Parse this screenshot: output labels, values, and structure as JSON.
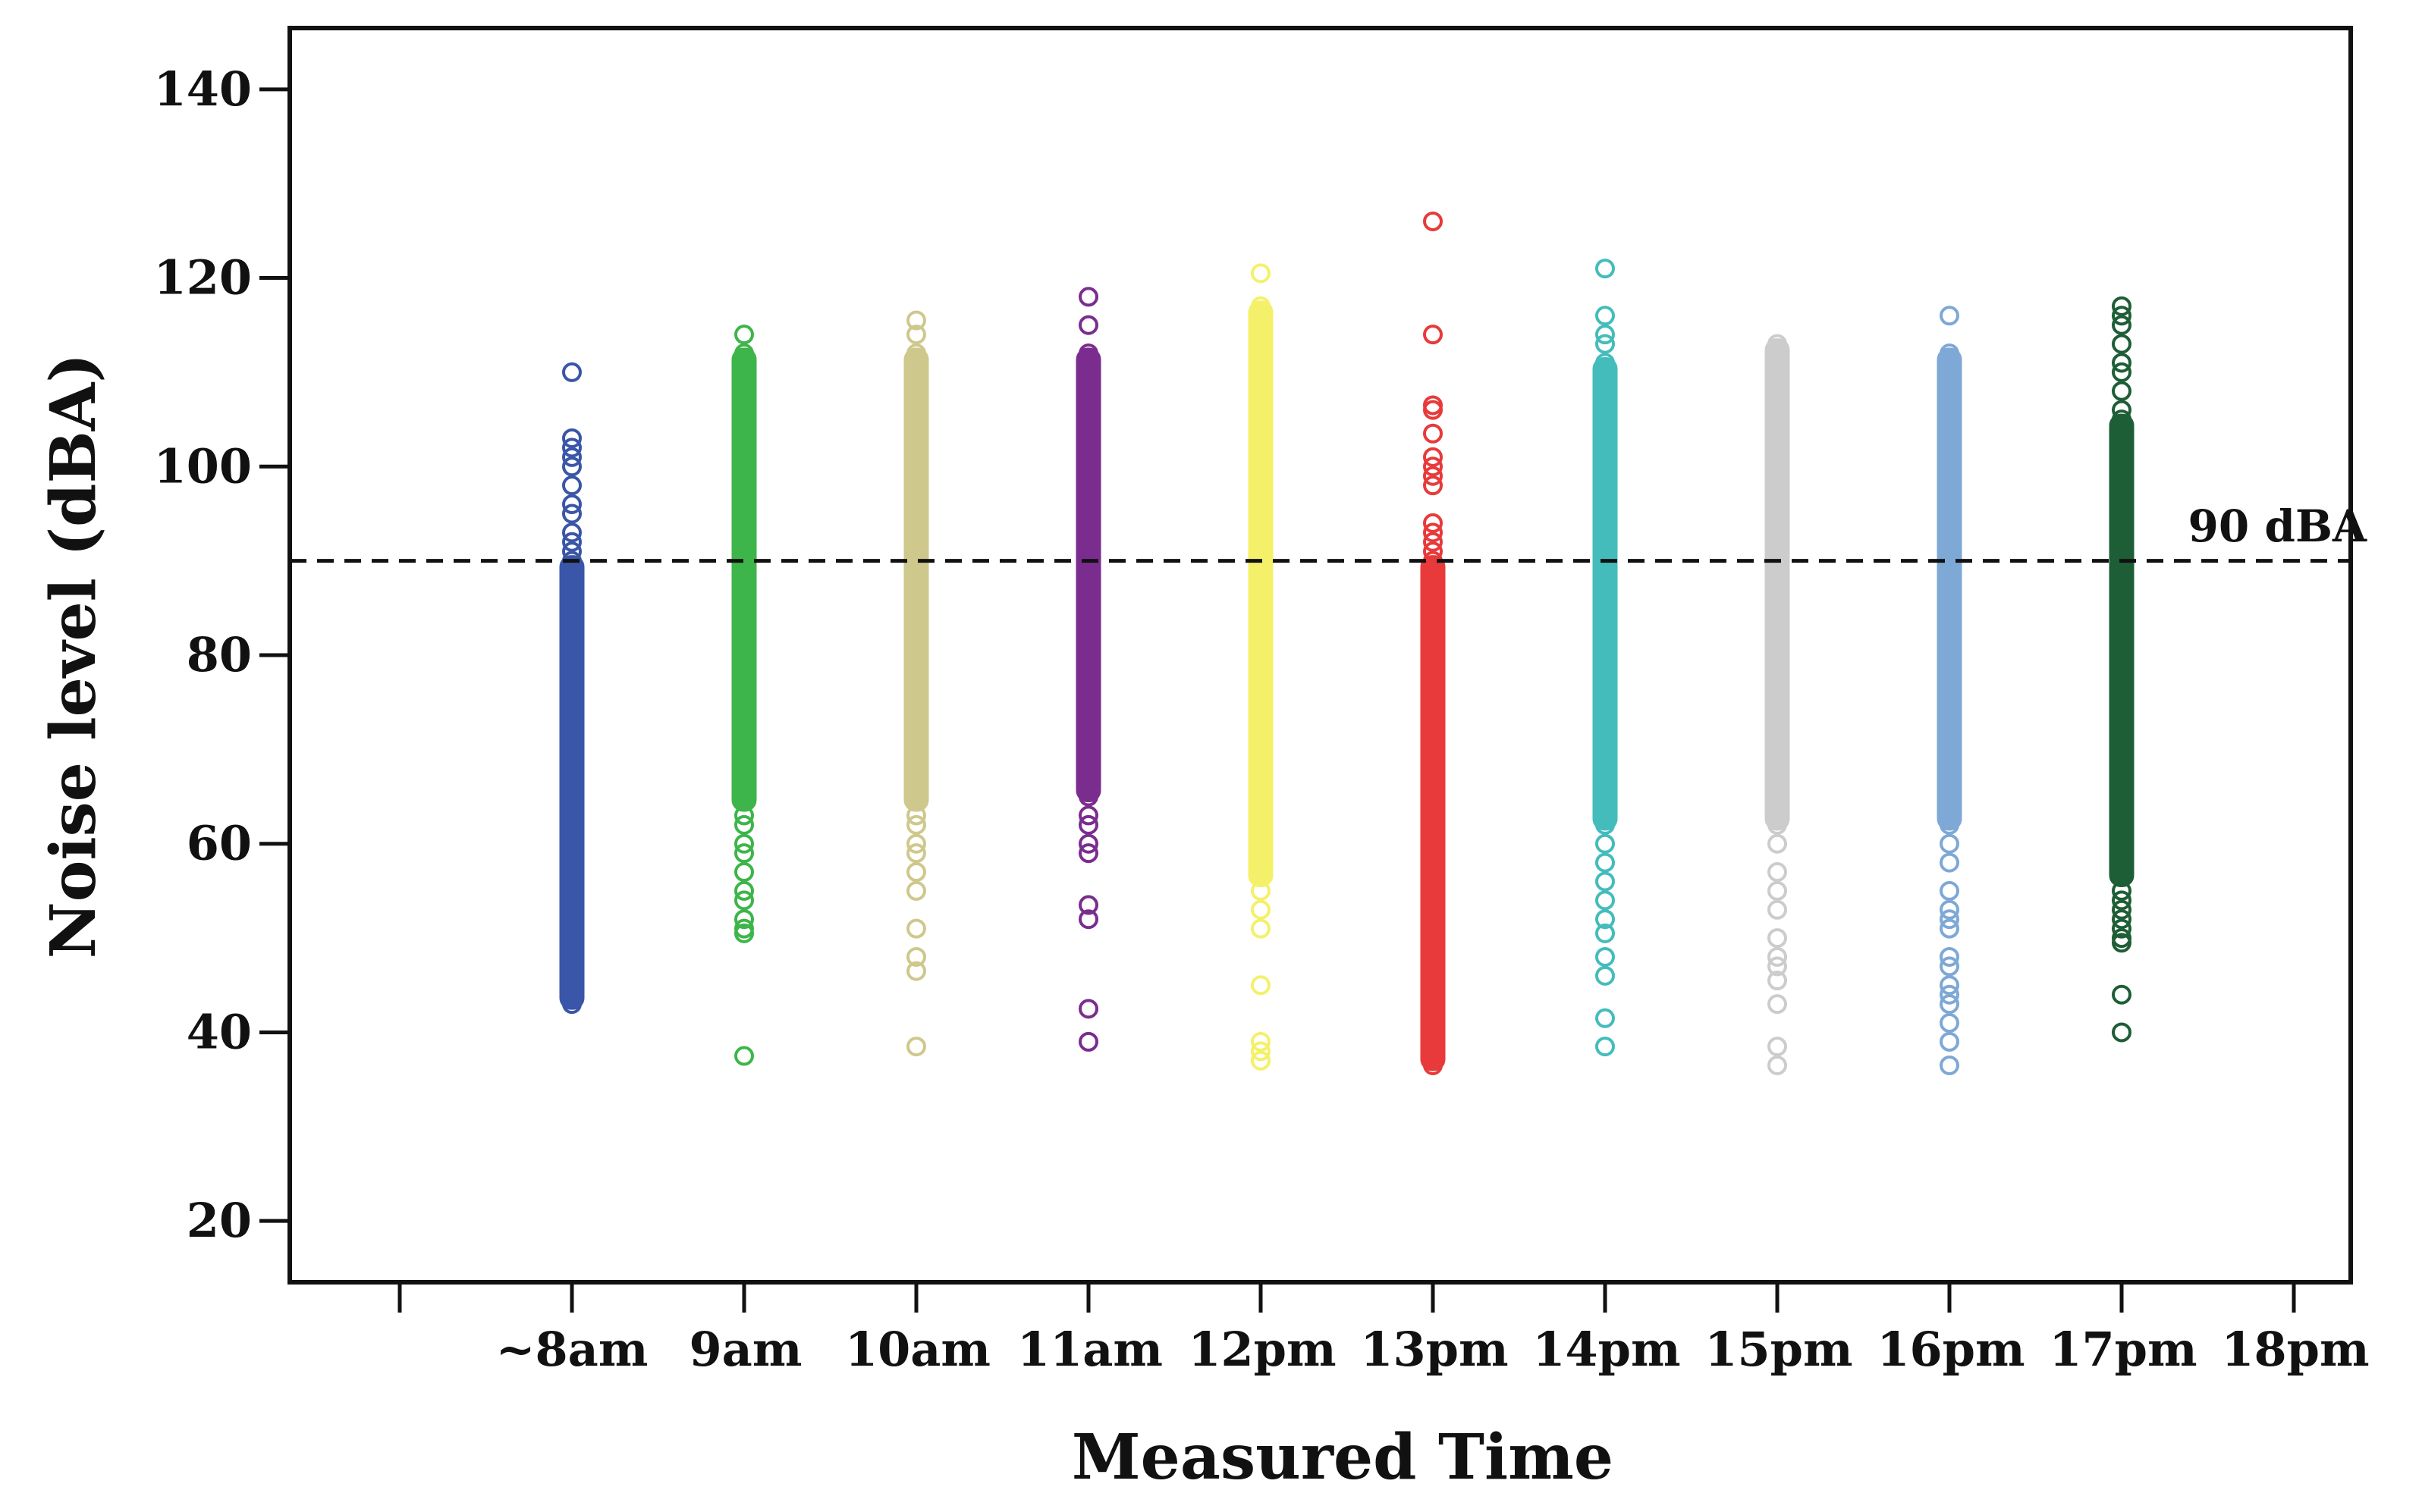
{
  "chart_data": {
    "type": "scatter",
    "title": "",
    "xlabel": "Measured Time",
    "ylabel": "Noise level (dBA)",
    "ylim": [
      13.5,
      146.5
    ],
    "yticks": [
      20,
      40,
      60,
      80,
      100,
      120,
      140
    ],
    "ytick_labels": [
      "20",
      "40",
      "60",
      "80",
      "100",
      "120",
      "140"
    ],
    "x_category_slots": [
      "",
      "~8am",
      "9am",
      "10am",
      "11am",
      "12pm",
      "13pm",
      "14pm",
      "15pm",
      "16pm",
      "17pm",
      "18pm"
    ],
    "xtick_labels": [
      "~8am",
      "9am",
      "10am",
      "11am",
      "12pm",
      "13pm",
      "14pm",
      "15pm",
      "16pm",
      "17pm",
      "18pm"
    ],
    "reference_line": {
      "value": 90,
      "label": "90 dBA",
      "style": "dashed"
    },
    "grid": false,
    "marker": "open-circle",
    "series": [
      {
        "name": "~8am",
        "color": "#3a56a8",
        "range": [
          43,
          90
        ],
        "values": [
          110,
          103,
          102,
          101,
          100,
          98,
          96,
          95,
          93,
          92,
          91,
          90,
          88,
          85,
          82,
          78,
          74,
          70,
          66,
          62,
          58,
          54,
          50,
          47,
          45,
          43.5,
          43
        ]
      },
      {
        "name": "9am",
        "color": "#3db54a",
        "range": [
          64,
          112
        ],
        "values": [
          114,
          112,
          110,
          108,
          105,
          100,
          95,
          90,
          85,
          80,
          75,
          70,
          66,
          65,
          63,
          62,
          60,
          59,
          57,
          55,
          54,
          52,
          51,
          50.5,
          37.5
        ]
      },
      {
        "name": "10am",
        "color": "#cfc88c",
        "range": [
          64,
          112
        ],
        "values": [
          115.5,
          114,
          112,
          110,
          105,
          100,
          95,
          90,
          85,
          80,
          75,
          70,
          65,
          63,
          62,
          60,
          59,
          57,
          55,
          51,
          48,
          46.5,
          38.5
        ]
      },
      {
        "name": "11am",
        "color": "#7a2d8e",
        "range": [
          65,
          112
        ],
        "values": [
          118,
          115,
          112,
          110,
          105,
          100,
          95,
          90,
          85,
          80,
          75,
          70,
          65,
          63,
          62,
          60,
          59,
          53.5,
          52,
          42.5,
          39
        ]
      },
      {
        "name": "12pm",
        "color": "#f5f06a",
        "range": [
          56,
          117
        ],
        "values": [
          120.5,
          117,
          115,
          112,
          108,
          104,
          100,
          95,
          90,
          85,
          80,
          75,
          70,
          65,
          60,
          57,
          55,
          53,
          51,
          45,
          39,
          38,
          37
        ]
      },
      {
        "name": "13pm",
        "color": "#e83a3a",
        "range": [
          36.5,
          90
        ],
        "values": [
          126,
          114,
          106.5,
          106,
          103.5,
          101,
          100,
          99,
          98,
          94,
          93,
          92,
          91,
          90,
          85,
          80,
          75,
          70,
          65,
          60,
          55,
          50,
          45,
          40,
          37,
          36.5
        ]
      },
      {
        "name": "14pm",
        "color": "#45bcbc",
        "range": [
          62,
          111
        ],
        "values": [
          121,
          116,
          114,
          113,
          111,
          108,
          105,
          100,
          95,
          90,
          85,
          80,
          75,
          70,
          65,
          62,
          60,
          58,
          56,
          54,
          52,
          50.5,
          48,
          46,
          41.5,
          38.5
        ]
      },
      {
        "name": "15pm",
        "color": "#cccccc",
        "range": [
          62,
          113
        ],
        "values": [
          113,
          111,
          108,
          105,
          100,
          95,
          90,
          85,
          80,
          75,
          70,
          65,
          62,
          60,
          57,
          55,
          53,
          50,
          48,
          47,
          45.5,
          43,
          38.5,
          36.5
        ]
      },
      {
        "name": "16pm",
        "color": "#7ea8d6",
        "range": [
          62,
          112
        ],
        "values": [
          116,
          112,
          110,
          108,
          105,
          100,
          95,
          90,
          85,
          80,
          75,
          70,
          65,
          62,
          60,
          58,
          55,
          53,
          52,
          51,
          48,
          47,
          45,
          44,
          43,
          41,
          39,
          36.5
        ]
      },
      {
        "name": "17pm",
        "color": "#1e5e36",
        "range": [
          56,
          105
        ],
        "values": [
          117,
          116,
          115,
          113,
          111,
          110,
          108,
          106,
          105,
          103,
          100,
          95,
          90,
          85,
          80,
          75,
          70,
          65,
          60,
          57,
          55,
          54,
          53,
          52,
          51,
          50,
          49.5,
          44,
          40
        ]
      }
    ]
  }
}
